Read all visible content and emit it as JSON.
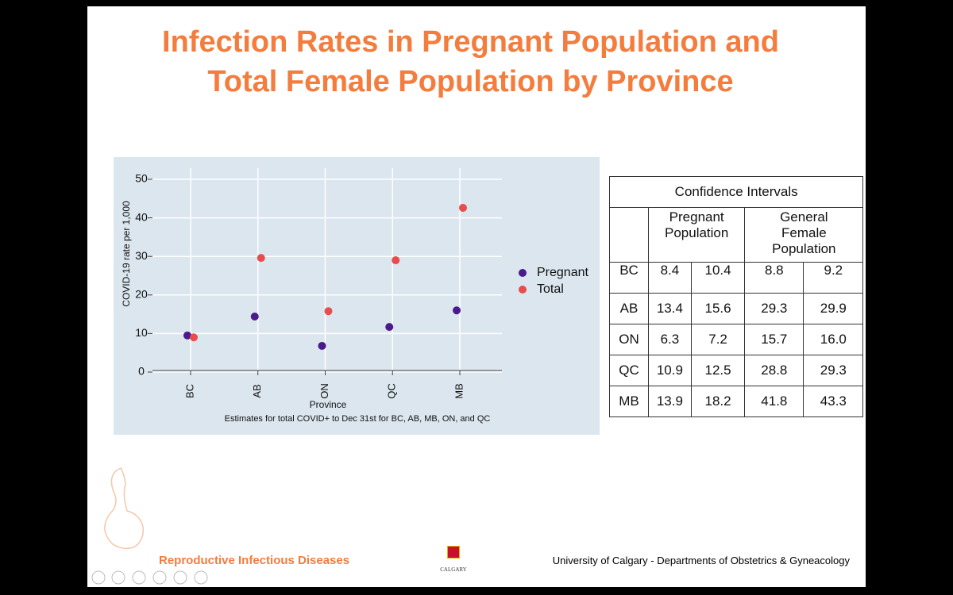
{
  "slide": {
    "title": "Infection Rates in Pregnant Population and Total Female Population by Province"
  },
  "chart_data": {
    "type": "scatter",
    "categories": [
      "BC",
      "AB",
      "ON",
      "QC",
      "MB"
    ],
    "x_label": "Province",
    "y_label": "COVID-19 rate per 1,000",
    "note": "Estimates for total COVID+ to Dec 31st for BC, AB, MB, ON, and QC",
    "series": [
      {
        "name": "Pregnant",
        "color": "#4b1a8c",
        "values": [
          9.5,
          14.4,
          6.8,
          11.7,
          16.0
        ]
      },
      {
        "name": "Total",
        "color": "#e84c4c",
        "values": [
          9.0,
          29.6,
          15.8,
          29.0,
          42.6
        ]
      }
    ],
    "ylim": [
      0,
      50
    ],
    "yticks": [
      0,
      10,
      20,
      30,
      40,
      50
    ],
    "grid": true,
    "legend": "right"
  },
  "table": {
    "title": "Confidence Intervals",
    "groups": [
      "Pregnant Population",
      "General Female Population"
    ],
    "rows": [
      [
        "BC",
        "8.4",
        "10.4",
        "8.8",
        "9.2"
      ],
      [
        "AB",
        "13.4",
        "15.6",
        "29.3",
        "29.9"
      ],
      [
        "ON",
        "6.3",
        "7.2",
        "15.7",
        "16.0"
      ],
      [
        "QC",
        "10.9",
        "12.5",
        "28.8",
        "29.3"
      ],
      [
        "MB",
        "13.9",
        "18.2",
        "41.8",
        "43.3"
      ]
    ]
  },
  "footer": {
    "left": "Reproductive Infectious Diseases",
    "logo": "CALGARY",
    "right": "University of Calgary - Departments of Obstetrics & Gyneacology"
  }
}
